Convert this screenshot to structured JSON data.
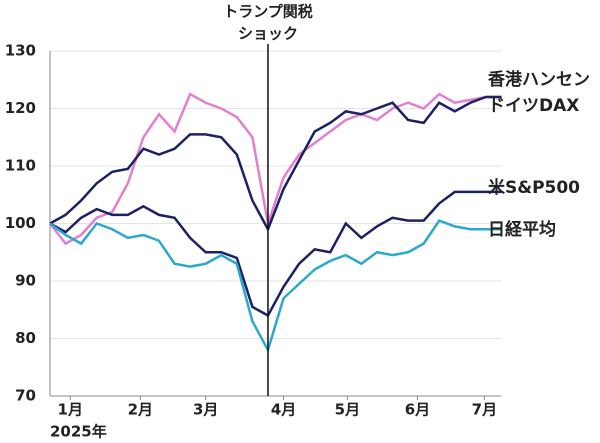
{
  "chart_data": {
    "type": "line",
    "annotation": [
      "トランプ関税",
      "ショック"
    ],
    "year_label": "2025年",
    "shock_x": 14,
    "x": [
      0,
      1,
      2,
      3,
      4,
      5,
      6,
      7,
      8,
      9,
      10,
      11,
      12,
      13,
      14,
      15,
      16,
      17,
      18,
      19,
      20,
      21,
      22,
      23,
      24,
      25,
      26,
      27,
      28,
      29
    ],
    "xlim": [
      0,
      29
    ],
    "xticks": [
      {
        "value": 1.3,
        "label": "1月"
      },
      {
        "value": 5.8,
        "label": "2月"
      },
      {
        "value": 10,
        "label": "3月"
      },
      {
        "value": 15,
        "label": "4月"
      },
      {
        "value": 19.1,
        "label": "5月"
      },
      {
        "value": 23.6,
        "label": "6月"
      },
      {
        "value": 27.9,
        "label": "7月"
      }
    ],
    "ylim": [
      70,
      130
    ],
    "yticks": [
      70,
      80,
      90,
      100,
      110,
      120,
      130
    ],
    "grid": true,
    "series": [
      {
        "name": "香港ハンセン",
        "color": "#e37fd0",
        "values": [
          100,
          96.5,
          98,
          101,
          102,
          107,
          115,
          119,
          116,
          122.5,
          121,
          120,
          118.5,
          115,
          100,
          108,
          112,
          114,
          116,
          118,
          119,
          118,
          120,
          121,
          120,
          122.5,
          121,
          121.5,
          122,
          122
        ]
      },
      {
        "name": "ドイツDAX",
        "color": "#1c2163",
        "values": [
          100,
          101.5,
          104,
          107,
          109,
          109.5,
          113,
          112,
          113,
          115.5,
          115.5,
          115,
          112,
          104,
          99,
          106,
          111,
          116,
          117.5,
          119.5,
          119,
          120,
          121,
          118,
          117.5,
          121,
          119.5,
          121,
          122,
          122
        ]
      },
      {
        "name": "米S&P500",
        "color": "#1c2163",
        "values": [
          100,
          98.5,
          101,
          102.5,
          101.5,
          101.5,
          103,
          101.5,
          101,
          97.5,
          95,
          95,
          94,
          85.5,
          84,
          89,
          93,
          95.5,
          95,
          100,
          97.5,
          99.5,
          101,
          100.5,
          100.5,
          103.5,
          105.5,
          105.5,
          105.5,
          105.5
        ]
      },
      {
        "name": "日経平均",
        "color": "#2ba9cc",
        "values": [
          100,
          98,
          96.5,
          100,
          99,
          97.5,
          98,
          97,
          93,
          92.5,
          93,
          94.5,
          93,
          83,
          78,
          87,
          89.5,
          92,
          93.5,
          94.5,
          93,
          95,
          94.5,
          95,
          96.5,
          100.5,
          99.5,
          99,
          99,
          99
        ]
      }
    ]
  }
}
